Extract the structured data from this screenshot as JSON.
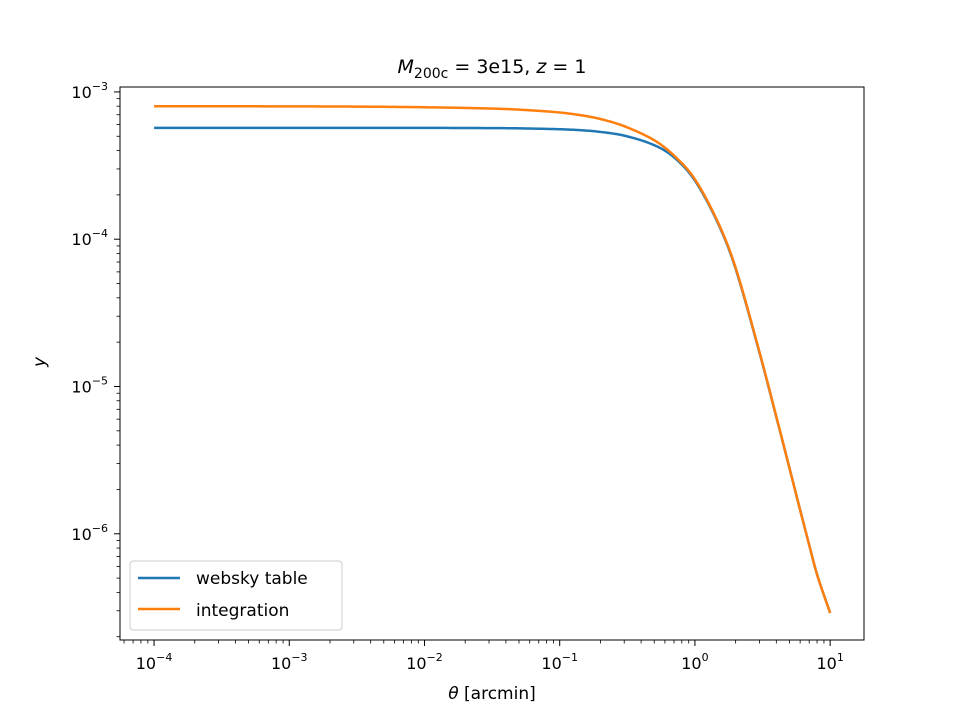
{
  "chart_data": {
    "type": "line",
    "title": {
      "mass_symbol": "M",
      "mass_subscript": "200c",
      "mass_value": " = 3e15, ",
      "z_symbol": "z",
      "z_value": " = 1"
    },
    "xlabel": {
      "symbol": "θ",
      "unit": " [arcmin]"
    },
    "ylabel": "y",
    "xscale": "log",
    "yscale": "log",
    "xlim": [
      5.6e-05,
      17.8
    ],
    "ylim": [
      1.9e-07,
      0.00108
    ],
    "x_ticks": [
      {
        "base": "10",
        "exp": "−4",
        "value": 0.0001
      },
      {
        "base": "10",
        "exp": "−3",
        "value": 0.001
      },
      {
        "base": "10",
        "exp": "−2",
        "value": 0.01
      },
      {
        "base": "10",
        "exp": "−1",
        "value": 0.1
      },
      {
        "base": "10",
        "exp": "0",
        "value": 1
      },
      {
        "base": "10",
        "exp": "1",
        "value": 10
      }
    ],
    "y_ticks": [
      {
        "base": "10",
        "exp": "−6",
        "value": 1e-06
      },
      {
        "base": "10",
        "exp": "−5",
        "value": 1e-05
      },
      {
        "base": "10",
        "exp": "−4",
        "value": 0.0001
      },
      {
        "base": "10",
        "exp": "−3",
        "value": 0.001
      }
    ],
    "grid": false,
    "legend_position": "lower-left",
    "series": [
      {
        "name": "websky table",
        "color": "#1f77b4",
        "x": [
          0.0001,
          0.001,
          0.01,
          0.03,
          0.05,
          0.1,
          0.15,
          0.2,
          0.3,
          0.5,
          0.7,
          1,
          1.5,
          2,
          3,
          4,
          5,
          6,
          7,
          8,
          10
        ],
        "y": [
          0.00057,
          0.00057,
          0.00057,
          0.000568,
          0.000566,
          0.000558,
          0.000548,
          0.000535,
          0.000505,
          0.000435,
          0.00036,
          0.00025,
          0.000125,
          6.3e-05,
          1.7e-05,
          6.2e-06,
          2.8e-06,
          1.45e-06,
          8.4e-07,
          5.3e-07,
          2.9e-07
        ]
      },
      {
        "name": "integration",
        "color": "#ff7f0e",
        "x": [
          0.0001,
          0.001,
          0.003,
          0.01,
          0.03,
          0.05,
          0.1,
          0.15,
          0.2,
          0.3,
          0.5,
          0.7,
          1,
          1.5,
          2,
          3,
          4,
          5,
          6,
          7,
          8,
          10
        ],
        "y": [
          0.0008,
          0.000798,
          0.000795,
          0.000787,
          0.000772,
          0.000758,
          0.000725,
          0.00069,
          0.000655,
          0.000585,
          0.00047,
          0.00037,
          0.000255,
          0.000127,
          6.4e-05,
          1.72e-05,
          6.25e-06,
          2.8e-06,
          1.45e-06,
          8.4e-07,
          5.3e-07,
          2.9e-07
        ]
      }
    ]
  }
}
